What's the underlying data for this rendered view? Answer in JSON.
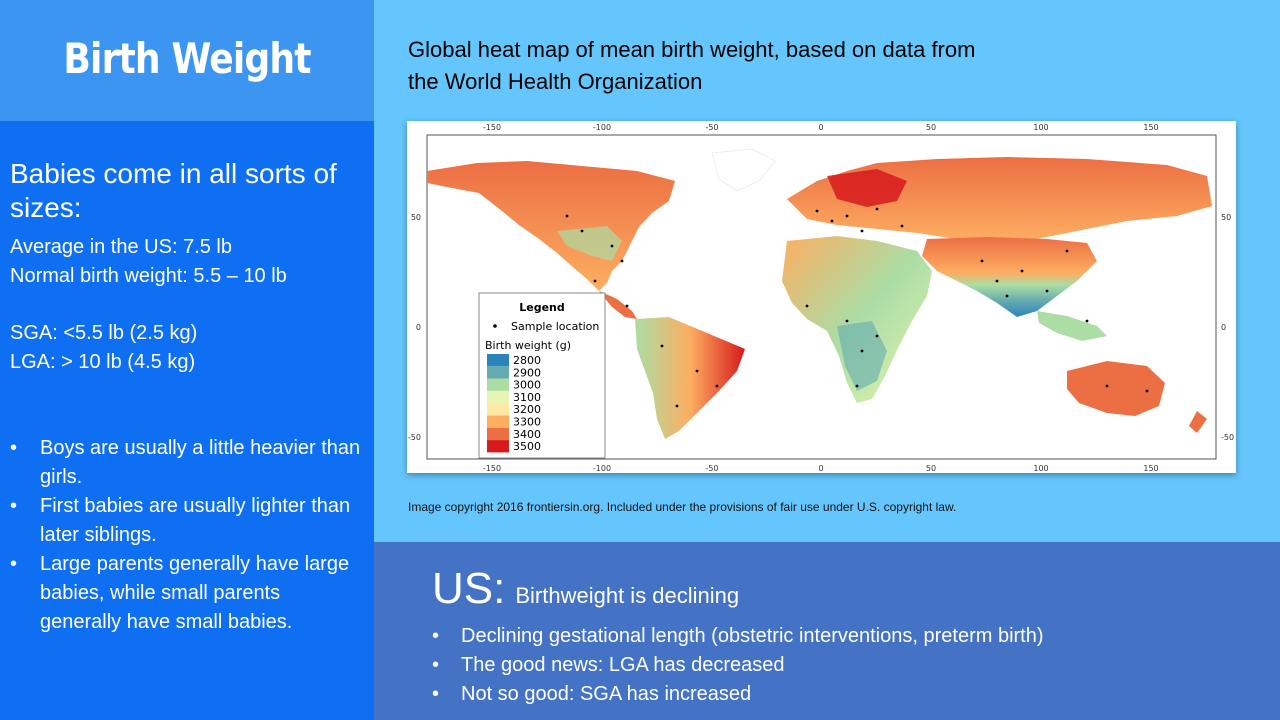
{
  "slide": {
    "title": "Birth Weight",
    "intro": "Babies come in all sorts of sizes:",
    "facts": {
      "average": "Average in the US: 7.5 lb",
      "normal": "Normal birth weight: 5.5 – 10 lb",
      "sga": "SGA: <5.5 lb (2.5 kg)",
      "lga": "LGA: > 10 lb (4.5 kg)"
    },
    "bullets": [
      "Boys are usually a little heavier than girls.",
      "First babies are usually lighter than later siblings.",
      "Large parents generally have large babies, while small parents generally have small babies."
    ],
    "map_caption": "Global heat map of mean birth weight, based on data from the World Health Organization",
    "copyright": "Image copyright 2016 frontiersin.org. Included under the provisions of fair use under U.S. copyright law.",
    "us": {
      "label": "US:",
      "headline": "Birthweight is declining",
      "points": [
        "Declining gestational length (obstetric interventions, preterm birth)",
        "The good news: LGA has decreased",
        "Not so good: SGA has increased"
      ]
    },
    "bullet_glyph": "•"
  },
  "map": {
    "x_ticks": [
      "-150",
      "-100",
      "-50",
      "0",
      "50",
      "100",
      "150"
    ],
    "y_ticks": [
      "50",
      "0",
      "-50"
    ],
    "legend": {
      "title": "Legend",
      "sample": "Sample location",
      "scale_title": "Birth weight (g)",
      "levels": [
        {
          "value": "2800",
          "color": "#2b83ba"
        },
        {
          "value": "2900",
          "color": "#64abb0"
        },
        {
          "value": "3000",
          "color": "#abdda4"
        },
        {
          "value": "3100",
          "color": "#e6f5b2"
        },
        {
          "value": "3200",
          "color": "#fee8a4"
        },
        {
          "value": "3300",
          "color": "#fdae61"
        },
        {
          "value": "3400",
          "color": "#ec6e43"
        },
        {
          "value": "3500",
          "color": "#d7191c"
        }
      ]
    }
  },
  "colors": {
    "title_bg": "#3d95f2",
    "left_bg": "#0f6ff3",
    "right_bg": "#65c6fd",
    "us_bg": "#4472c4"
  }
}
